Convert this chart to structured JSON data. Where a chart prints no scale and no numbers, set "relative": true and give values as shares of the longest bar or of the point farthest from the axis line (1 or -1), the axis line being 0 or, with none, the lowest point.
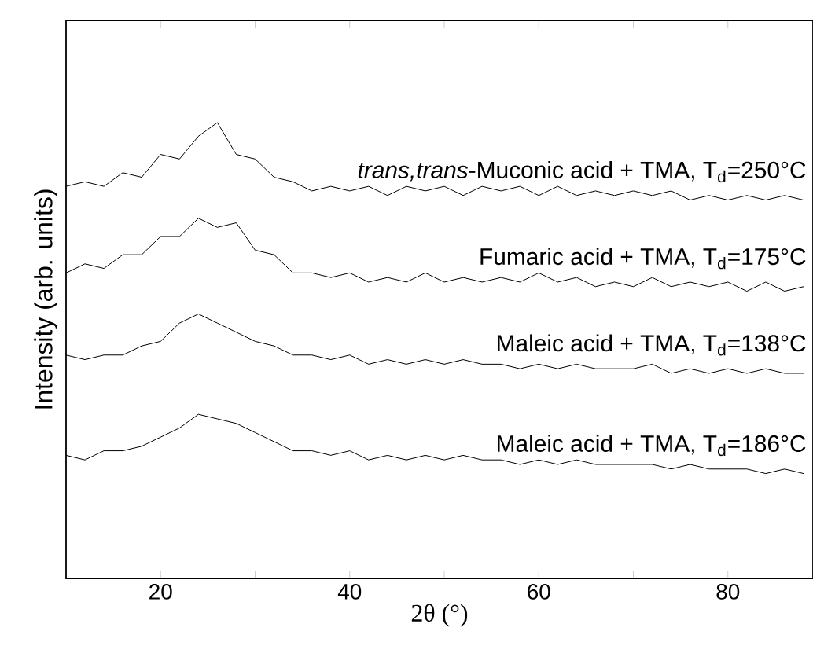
{
  "chart_data": {
    "type": "line",
    "relative": true,
    "xlabel": "2θ (°)",
    "ylabel": "Intensity (arb. units)",
    "xlim": [
      10,
      89
    ],
    "xticks": [
      20,
      {
        "value": 30,
        "label": null
      },
      40,
      {
        "value": 50,
        "label": null
      },
      60,
      {
        "value": 70,
        "label": null
      },
      80
    ],
    "x": [
      10,
      12,
      14,
      16,
      18,
      20,
      22,
      24,
      26,
      28,
      30,
      32,
      34,
      36,
      38,
      40,
      42,
      44,
      46,
      48,
      50,
      52,
      54,
      56,
      58,
      60,
      62,
      64,
      66,
      68,
      70,
      72,
      74,
      76,
      78,
      80,
      82,
      84,
      86,
      88
    ],
    "series": [
      {
        "name": "*trans,trans*-Muconic acid + TMA, T$_{d}$=250°C",
        "color": "#000000",
        "values": [
          0.86,
          0.87,
          0.86,
          0.89,
          0.88,
          0.93,
          0.92,
          0.97,
          1.0,
          0.93,
          0.92,
          0.88,
          0.87,
          0.85,
          0.86,
          0.85,
          0.86,
          0.84,
          0.86,
          0.85,
          0.86,
          0.84,
          0.86,
          0.85,
          0.86,
          0.84,
          0.86,
          0.84,
          0.85,
          0.84,
          0.85,
          0.84,
          0.85,
          0.83,
          0.84,
          0.83,
          0.84,
          0.83,
          0.84,
          0.83
        ]
      },
      {
        "name": "Fumaric acid + TMA, T$_{d}$=175°C",
        "color": "#000000",
        "values": [
          0.67,
          0.69,
          0.68,
          0.71,
          0.71,
          0.75,
          0.75,
          0.79,
          0.77,
          0.78,
          0.72,
          0.71,
          0.67,
          0.67,
          0.66,
          0.67,
          0.65,
          0.66,
          0.65,
          0.67,
          0.65,
          0.66,
          0.65,
          0.66,
          0.65,
          0.67,
          0.65,
          0.66,
          0.64,
          0.65,
          0.64,
          0.66,
          0.64,
          0.65,
          0.64,
          0.65,
          0.63,
          0.65,
          0.63,
          0.64
        ]
      },
      {
        "name": "Maleic acid + TMA, T$_{d}$=138°C",
        "color": "#000000",
        "values": [
          0.49,
          0.48,
          0.49,
          0.49,
          0.51,
          0.52,
          0.56,
          0.58,
          0.56,
          0.54,
          0.52,
          0.51,
          0.49,
          0.49,
          0.48,
          0.49,
          0.47,
          0.48,
          0.47,
          0.48,
          0.47,
          0.48,
          0.47,
          0.47,
          0.46,
          0.47,
          0.46,
          0.47,
          0.46,
          0.46,
          0.46,
          0.47,
          0.45,
          0.46,
          0.45,
          0.46,
          0.45,
          0.46,
          0.45,
          0.45
        ]
      },
      {
        "name": "Maleic acid + TMA, T$_{d}$=186°C",
        "color": "#000000",
        "values": [
          0.27,
          0.26,
          0.28,
          0.28,
          0.29,
          0.31,
          0.33,
          0.36,
          0.35,
          0.34,
          0.32,
          0.3,
          0.28,
          0.28,
          0.27,
          0.28,
          0.26,
          0.27,
          0.26,
          0.27,
          0.26,
          0.27,
          0.26,
          0.26,
          0.25,
          0.26,
          0.25,
          0.26,
          0.25,
          0.25,
          0.25,
          0.25,
          0.24,
          0.25,
          0.24,
          0.24,
          0.24,
          0.23,
          0.24,
          0.23
        ]
      }
    ]
  }
}
